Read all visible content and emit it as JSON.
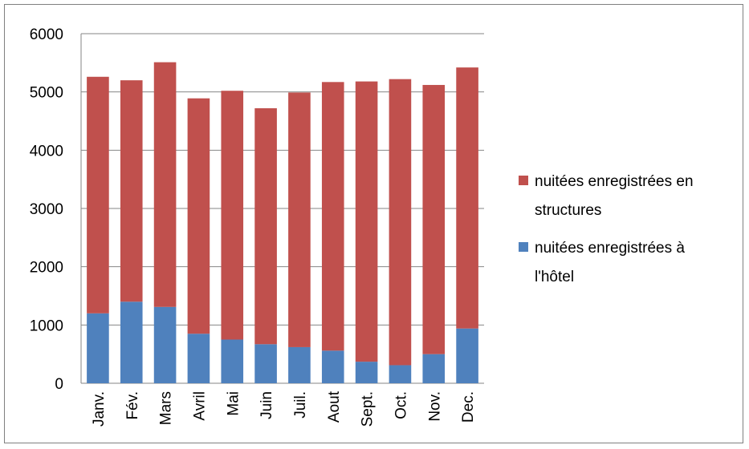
{
  "chart_data": {
    "type": "bar",
    "stacked": true,
    "categories": [
      "Janv.",
      "Fév.",
      "Mars",
      "Avril",
      "Mai",
      "Juin",
      "Juil.",
      "Aout",
      "Sept.",
      "Oct.",
      "Nov.",
      "Dec."
    ],
    "series": [
      {
        "name": "nuitées enregistrées à l'hôtel",
        "color": "#4f81bd",
        "values": [
          1200,
          1400,
          1310,
          850,
          750,
          670,
          620,
          560,
          370,
          310,
          500,
          940
        ]
      },
      {
        "name": "nuitées enregistrées en structures",
        "color": "#c0504d",
        "values": [
          4060,
          3800,
          4200,
          4040,
          4270,
          4050,
          4370,
          4610,
          4810,
          4910,
          4620,
          4480
        ]
      }
    ],
    "ylim": [
      0,
      6000
    ],
    "yticks": [
      0,
      1000,
      2000,
      3000,
      4000,
      5000,
      6000
    ],
    "grid": true,
    "legend_position": "right",
    "legend_entries": [
      {
        "lines": [
          "nuitées enregistrées en",
          "structures"
        ],
        "color": "#c0504d"
      },
      {
        "lines": [
          "nuitées enregistrées à",
          "l'hôtel"
        ],
        "color": "#4f81bd"
      }
    ],
    "title": "",
    "xlabel": "",
    "ylabel": ""
  }
}
